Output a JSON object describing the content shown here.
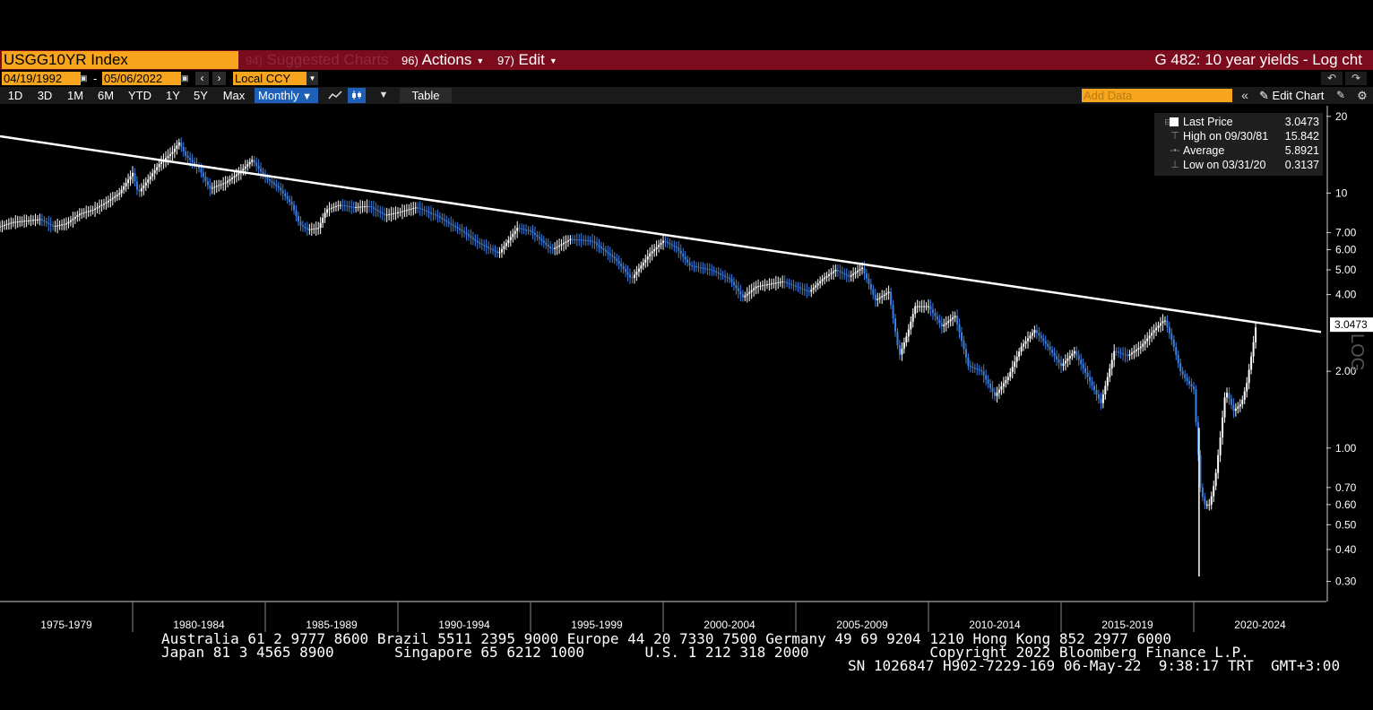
{
  "header": {
    "ticker": "USGG10YR Index",
    "menu_suggested_num": "94)",
    "menu_suggested": "Suggested Charts",
    "menu_actions_num": "96)",
    "menu_actions": "Actions",
    "menu_edit_num": "97)",
    "menu_edit": "Edit",
    "chart_title": "G 482: 10 year yields - Log cht"
  },
  "dates": {
    "start": "04/19/1992",
    "separator": "-",
    "end": "05/06/2022",
    "currency": "Local CCY"
  },
  "toolbar": {
    "ranges": [
      "1D",
      "3D",
      "1M",
      "6M",
      "YTD",
      "1Y",
      "5Y",
      "Max"
    ],
    "frequency": "Monthly",
    "table": "Table",
    "add_data_placeholder": "Add Data",
    "edit_chart": "Edit Chart"
  },
  "legend": {
    "last_label": "Last Price",
    "last_value": "3.0473",
    "high_label": "High on 09/30/81",
    "high_value": "15.842",
    "avg_label": "Average",
    "avg_value": "5.8921",
    "low_label": "Low on 03/31/20",
    "low_value": "0.3137"
  },
  "colors": {
    "header_bg": "#7a0c1e",
    "accent_orange": "#f7a51c",
    "up_candle": "#ffffff",
    "down_candle": "#3d7fe0",
    "trendline": "#ffffff",
    "frequency_bg": "#1e5fb8"
  },
  "footer": {
    "line1": "Australia 61 2 9777 8600 Brazil 5511 2395 9000 Europe 44 20 7330 7500 Germany 49 69 9204 1210 Hong Kong 852 2977 6000",
    "line2": "Japan 81 3 4565 8900       Singapore 65 6212 1000       U.S. 1 212 318 2000              Copyright 2022 Bloomberg Finance L.P.",
    "line3": "SN 1026847 H902-7229-169 06-May-22  9:38:17 TRT  GMT+3:00"
  },
  "chart_data": {
    "type": "line",
    "scale": "log",
    "axis_side_label": "LOG",
    "ylim": [
      0.25,
      22
    ],
    "y_ticks": [
      "20",
      "10",
      "7.00",
      "6.00",
      "5.00",
      "4.00",
      "2.00",
      "1.00",
      "0.70",
      "0.60",
      "0.50",
      "0.40",
      "0.30"
    ],
    "y_tick_values": [
      20,
      10,
      7,
      6,
      5,
      4,
      2,
      1,
      0.7,
      0.6,
      0.5,
      0.4,
      0.3
    ],
    "x_range": [
      1975.0,
      2025.0
    ],
    "x_ticks": [
      "1975-1979",
      "1980-1984",
      "1985-1989",
      "1990-1994",
      "1995-1999",
      "2000-2004",
      "2005-2009",
      "2010-2014",
      "2015-2019",
      "2020-2024"
    ],
    "x_tick_starts": [
      1975,
      1980,
      1985,
      1990,
      1995,
      2000,
      2005,
      2010,
      2015,
      2020
    ],
    "last_price_label": "3.0473",
    "last_price": 3.0473,
    "trendline": {
      "x": [
        1975.0,
        2024.8
      ],
      "y": [
        16.7,
        2.85
      ]
    },
    "series": [
      {
        "x": [
          1975.0,
          1975.5,
          1976.0,
          1976.5,
          1977.0,
          1977.5,
          1978.0,
          1978.5,
          1979.0,
          1979.5,
          1980.0,
          1980.2,
          1980.5,
          1981.0,
          1981.5,
          1981.75,
          1982.0,
          1982.5,
          1982.9,
          1983.5,
          1984.0,
          1984.5,
          1985.0,
          1985.5,
          1986.0,
          1986.3,
          1986.6,
          1987.0,
          1987.3,
          1987.8,
          1988.3,
          1988.9,
          1989.5,
          1990.0,
          1990.7,
          1991.5,
          1992.5,
          1993.0,
          1993.8,
          1994.5,
          1995.0,
          1995.8,
          1996.5,
          1997.3,
          1998.2,
          1998.8,
          1999.5,
          2000.0,
          2000.5,
          2001.0,
          2001.8,
          2002.5,
          2003.0,
          2003.5,
          2004.0,
          2004.5,
          2005.0,
          2005.5,
          2006.0,
          2006.5,
          2007.0,
          2007.5,
          2008.0,
          2008.5,
          2008.9,
          2009.2,
          2009.5,
          2010.0,
          2010.5,
          2011.0,
          2011.5,
          2012.0,
          2012.5,
          2013.0,
          2013.5,
          2014.0,
          2014.5,
          2015.0,
          2015.5,
          2016.0,
          2016.5,
          2017.0,
          2017.5,
          2018.0,
          2018.5,
          2018.9,
          2019.2,
          2019.5,
          2019.8,
          2020.0,
          2020.25,
          2020.4,
          2020.6,
          2020.8,
          2021.0,
          2021.2,
          2021.5,
          2021.8,
          2022.0,
          2022.2,
          2022.35
        ],
        "y": [
          7.4,
          7.7,
          7.8,
          7.9,
          7.4,
          7.6,
          8.3,
          8.6,
          9.2,
          10.0,
          12.0,
          10.0,
          11.0,
          13.0,
          14.5,
          15.8,
          14.0,
          12.5,
          10.4,
          11.0,
          12.0,
          13.5,
          11.5,
          10.5,
          9.0,
          7.5,
          7.2,
          7.3,
          8.6,
          9.0,
          8.8,
          8.9,
          8.2,
          8.4,
          8.8,
          8.1,
          7.0,
          6.4,
          5.8,
          7.3,
          7.1,
          6.0,
          6.6,
          6.5,
          5.5,
          4.6,
          5.8,
          6.5,
          6.1,
          5.2,
          5.0,
          4.6,
          3.9,
          4.3,
          4.4,
          4.5,
          4.3,
          4.1,
          4.6,
          5.0,
          4.7,
          5.1,
          3.8,
          4.1,
          2.3,
          2.8,
          3.6,
          3.6,
          3.0,
          3.3,
          2.1,
          2.0,
          1.6,
          1.9,
          2.5,
          2.9,
          2.5,
          2.1,
          2.4,
          1.9,
          1.5,
          2.4,
          2.3,
          2.5,
          2.9,
          3.2,
          2.6,
          2.0,
          1.8,
          1.7,
          0.7,
          0.6,
          0.6,
          0.75,
          1.1,
          1.7,
          1.4,
          1.5,
          1.8,
          2.4,
          3.05
        ]
      }
    ]
  }
}
